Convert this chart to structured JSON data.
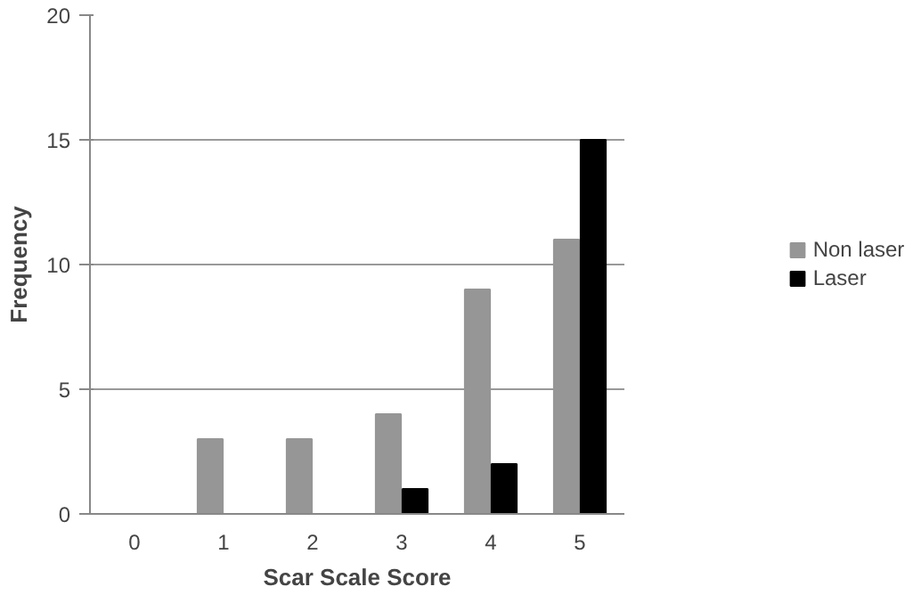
{
  "chart_data": {
    "type": "bar",
    "xlabel": "Scar Scale Score",
    "ylabel": "Frequency",
    "categories": [
      "0",
      "1",
      "2",
      "3",
      "4",
      "5"
    ],
    "series": [
      {
        "name": "Non laser",
        "color": "#969696",
        "values": [
          0,
          3,
          3,
          4,
          9,
          11
        ]
      },
      {
        "name": "Laser",
        "color": "#000000",
        "values": [
          0,
          0,
          0,
          1,
          2,
          15
        ]
      }
    ],
    "ylim": [
      0,
      20
    ],
    "yticks": [
      0,
      5,
      10,
      15,
      20
    ],
    "grid": "y",
    "legend": "right"
  }
}
